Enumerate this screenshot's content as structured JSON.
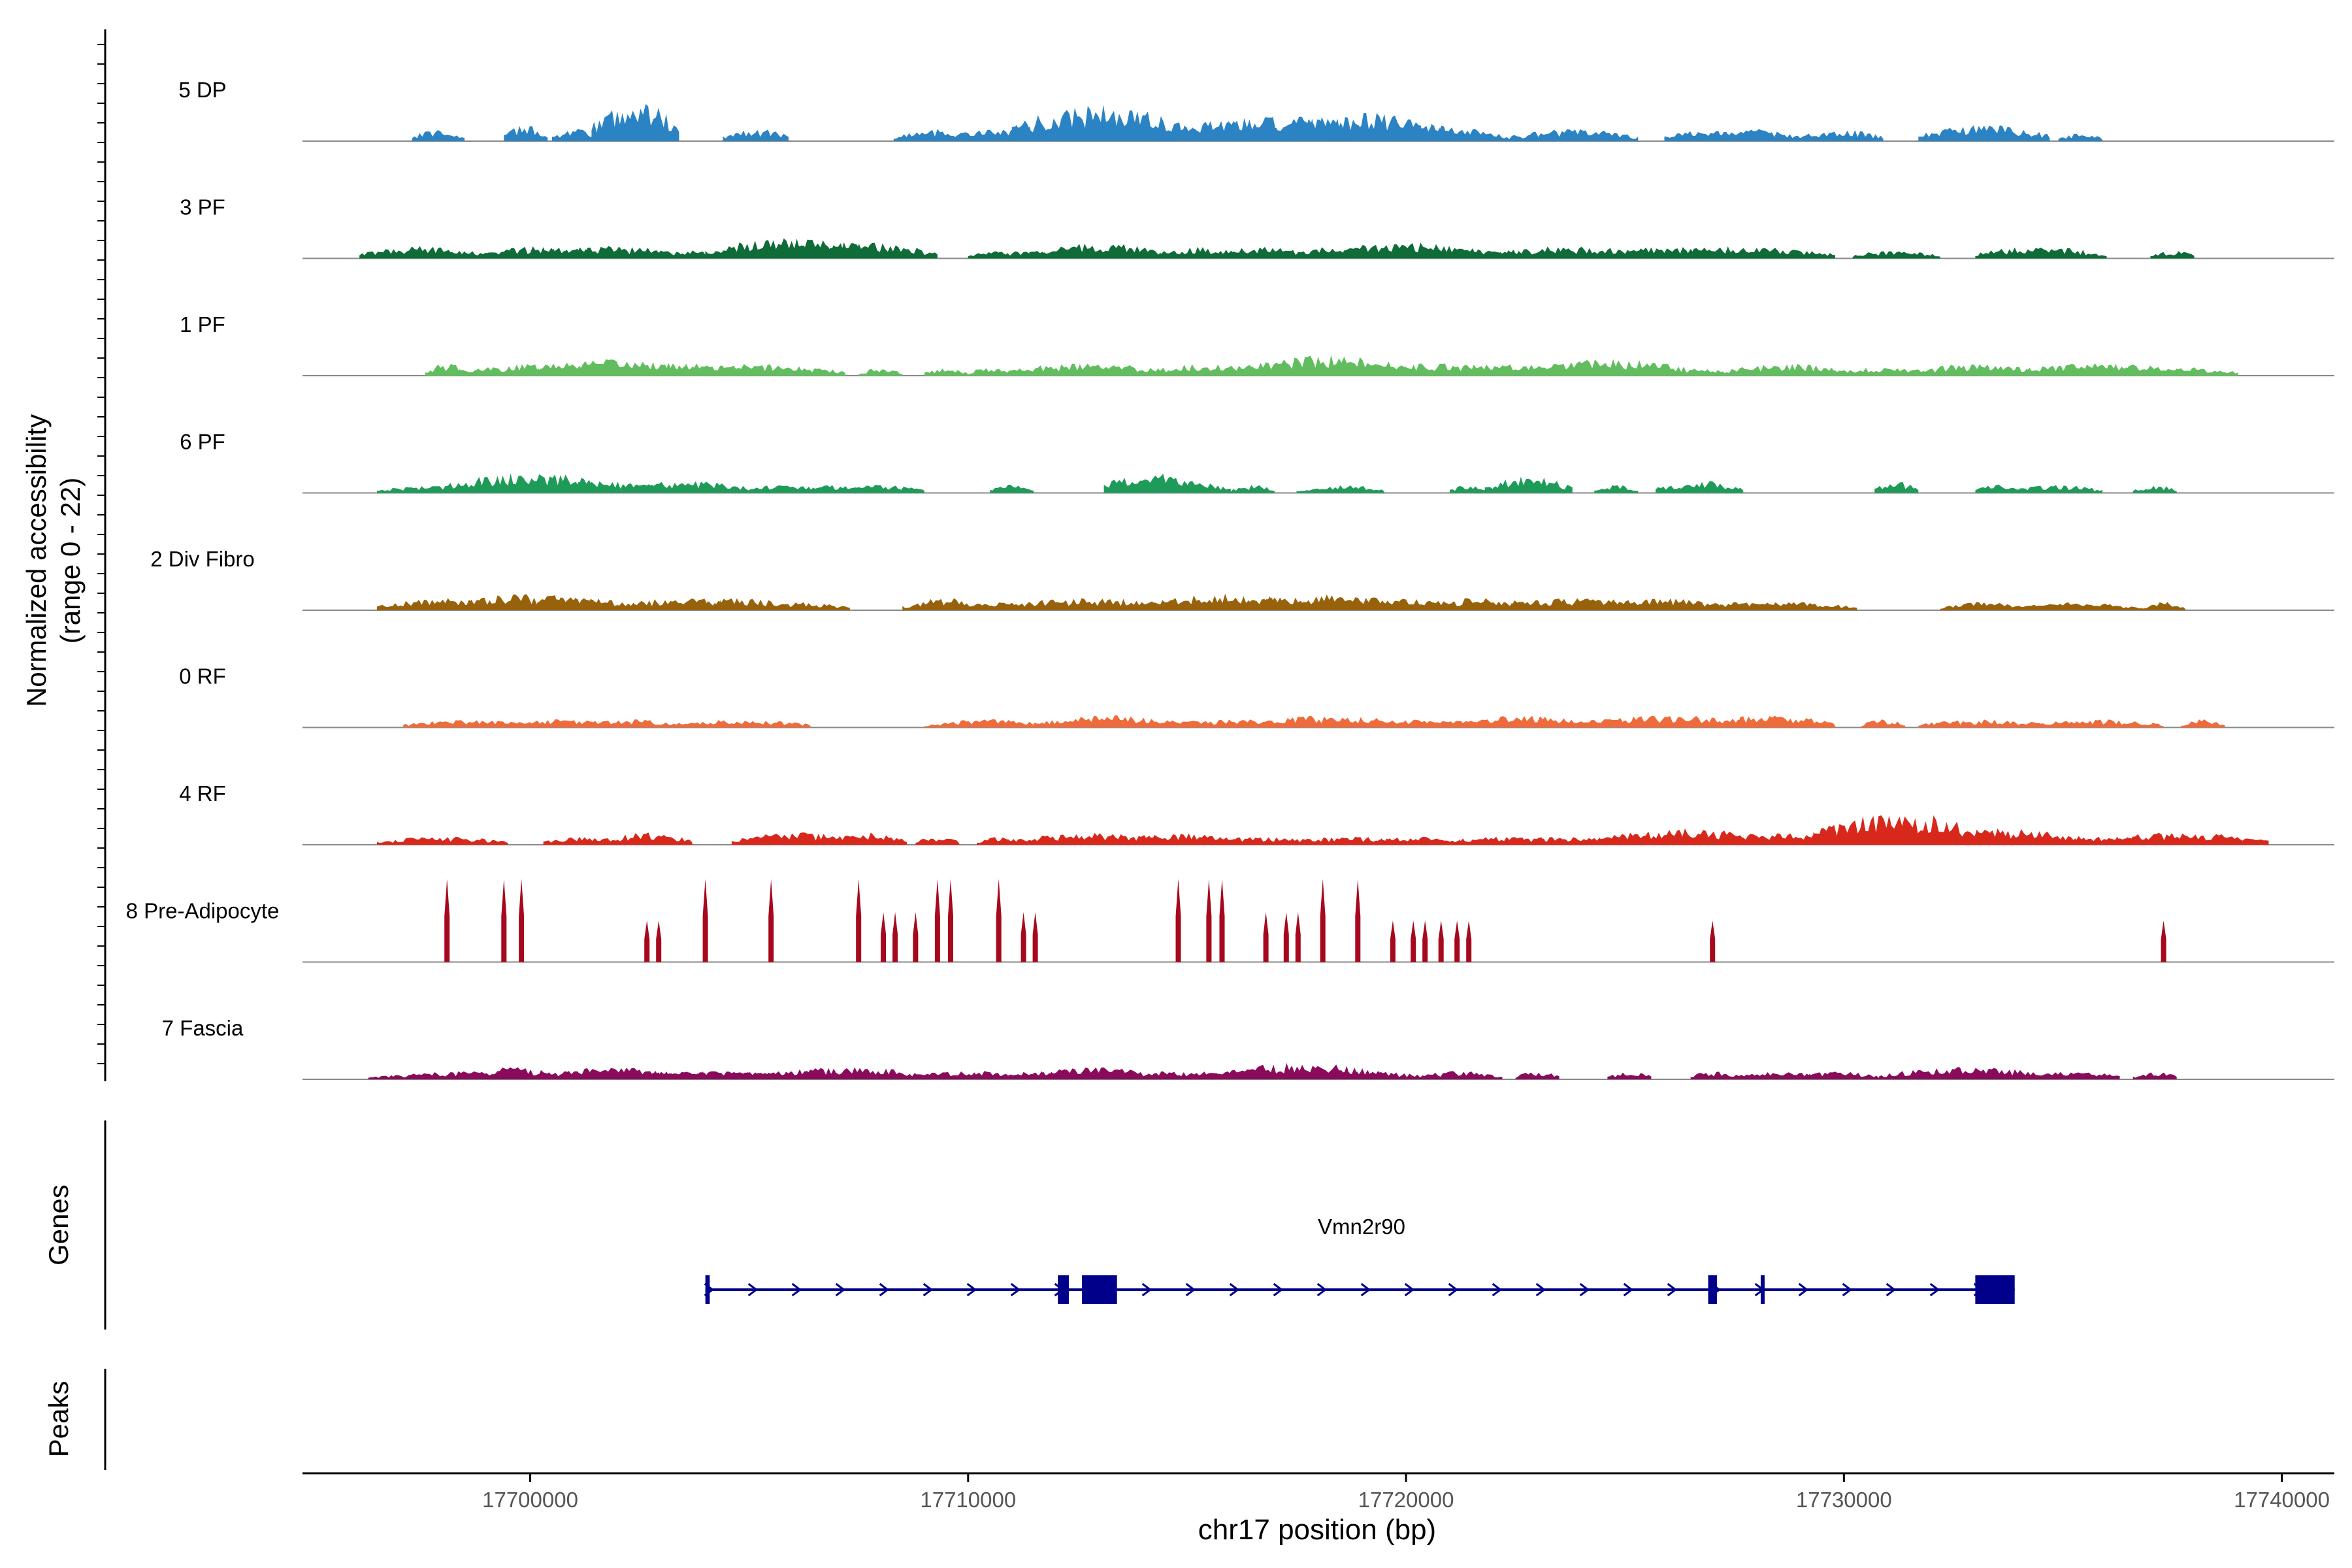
{
  "chart_data": {
    "type": "coverage-track",
    "y_axis_label_line1": "Normalized accessibility",
    "y_axis_label_line2": "(range 0 - 22)",
    "y_range": [
      0,
      22
    ],
    "x_axis_label": "chr17 position (bp)",
    "x_range": [
      17694800,
      17741200
    ],
    "x_ticks": [
      17700000,
      17710000,
      17720000,
      17730000,
      17740000
    ],
    "x_tick_labels": [
      "17700000",
      "17710000",
      "17720000",
      "17730000",
      "17740000"
    ],
    "tracks": [
      {
        "name": "5 DP",
        "color": "#2b83c4",
        "peaks": [
          [
            17697800,
            3,
            1
          ],
          [
            17698000,
            2,
            1
          ],
          [
            17699900,
            4,
            1
          ],
          [
            17701000,
            3,
            1
          ],
          [
            17702400,
            10,
            2
          ],
          [
            17704900,
            3,
            1
          ],
          [
            17705400,
            3,
            1
          ],
          [
            17709300,
            3,
            2
          ],
          [
            17711400,
            4,
            3
          ],
          [
            17713000,
            9,
            4
          ],
          [
            17715900,
            5,
            3
          ],
          [
            17717200,
            6,
            5
          ],
          [
            17719000,
            7,
            4
          ],
          [
            17720300,
            4,
            4
          ],
          [
            17723800,
            3,
            3
          ],
          [
            17726900,
            3,
            2
          ],
          [
            17728000,
            3,
            2
          ],
          [
            17729900,
            3,
            2
          ],
          [
            17733200,
            4,
            3
          ],
          [
            17735400,
            2,
            1
          ]
        ]
      },
      {
        "name": "3 PF",
        "color": "#0f6b37",
        "peaks": [
          [
            17697600,
            3,
            3
          ],
          [
            17698300,
            2,
            1
          ],
          [
            17700300,
            3,
            3
          ],
          [
            17701700,
            3,
            4
          ],
          [
            17702800,
            2,
            1
          ],
          [
            17703800,
            2,
            1
          ],
          [
            17704800,
            2,
            1
          ],
          [
            17706000,
            5,
            4
          ],
          [
            17707300,
            4,
            4
          ],
          [
            17710500,
            2,
            1
          ],
          [
            17711500,
            2,
            3
          ],
          [
            17712900,
            4,
            3
          ],
          [
            17715300,
            3,
            2
          ],
          [
            17716600,
            3,
            2
          ],
          [
            17718500,
            3,
            3
          ],
          [
            17720000,
            4,
            4
          ],
          [
            17721600,
            2,
            3
          ],
          [
            17723800,
            3,
            4
          ],
          [
            17725900,
            3,
            3
          ],
          [
            17727500,
            3,
            4
          ],
          [
            17729300,
            2,
            1
          ],
          [
            17731200,
            2,
            2
          ],
          [
            17734500,
            3,
            3
          ],
          [
            17737500,
            2,
            1
          ]
        ]
      },
      {
        "name": "1 PF",
        "color": "#62bd5f",
        "peaks": [
          [
            17698100,
            3,
            1
          ],
          [
            17698600,
            2,
            1
          ],
          [
            17700500,
            3,
            4
          ],
          [
            17702000,
            4,
            4
          ],
          [
            17703500,
            3,
            3
          ],
          [
            17705300,
            3,
            3
          ],
          [
            17706700,
            2,
            1
          ],
          [
            17708000,
            2,
            1
          ],
          [
            17709500,
            2,
            1
          ],
          [
            17710500,
            2,
            1
          ],
          [
            17712700,
            3,
            4
          ],
          [
            17715800,
            3,
            4
          ],
          [
            17718200,
            5,
            4
          ],
          [
            17720800,
            3,
            4
          ],
          [
            17722500,
            3,
            3
          ],
          [
            17724700,
            4,
            4
          ],
          [
            17726800,
            2,
            1
          ],
          [
            17728700,
            3,
            3
          ],
          [
            17730800,
            2,
            3
          ],
          [
            17733100,
            3,
            3
          ],
          [
            17735700,
            3,
            4
          ],
          [
            17736400,
            3,
            3
          ],
          [
            17738000,
            2,
            2
          ]
        ]
      },
      {
        "name": "6 PF",
        "color": "#1f9b59",
        "peaks": [
          [
            17698000,
            2,
            3
          ],
          [
            17700000,
            5,
            4
          ],
          [
            17701700,
            3,
            3
          ],
          [
            17703600,
            3,
            3
          ],
          [
            17705700,
            2,
            2
          ],
          [
            17707200,
            2,
            3
          ],
          [
            17708000,
            2,
            2
          ],
          [
            17711000,
            2,
            1
          ],
          [
            17714100,
            5,
            2
          ],
          [
            17715000,
            3,
            2
          ],
          [
            17716500,
            2,
            1
          ],
          [
            17718500,
            2,
            2
          ],
          [
            17721500,
            2,
            1
          ],
          [
            17722800,
            4,
            2
          ],
          [
            17724800,
            2,
            1
          ],
          [
            17726700,
            3,
            2
          ],
          [
            17731200,
            3,
            1
          ],
          [
            17733500,
            2,
            1
          ],
          [
            17734900,
            2,
            2
          ],
          [
            17737100,
            2,
            1
          ]
        ]
      },
      {
        "name": "2 Div Fibro",
        "color": "#98620c",
        "peaks": [
          [
            17698000,
            3,
            3
          ],
          [
            17700000,
            4,
            4
          ],
          [
            17701200,
            3,
            3
          ],
          [
            17703500,
            3,
            3
          ],
          [
            17704600,
            3,
            3
          ],
          [
            17706300,
            2,
            2
          ],
          [
            17709500,
            3,
            2
          ],
          [
            17711000,
            2,
            2
          ],
          [
            17712800,
            3,
            4
          ],
          [
            17715900,
            4,
            4
          ],
          [
            17718100,
            4,
            4
          ],
          [
            17719700,
            3,
            3
          ],
          [
            17721700,
            3,
            3
          ],
          [
            17724000,
            3,
            4
          ],
          [
            17725800,
            3,
            3
          ],
          [
            17727300,
            2,
            3
          ],
          [
            17728800,
            2,
            3
          ],
          [
            17733200,
            2,
            2
          ],
          [
            17735300,
            2,
            3
          ],
          [
            17737300,
            2,
            1
          ]
        ]
      },
      {
        "name": "0 RF",
        "color": "#ee6b3b",
        "peaks": [
          [
            17698600,
            2,
            3
          ],
          [
            17700700,
            2,
            3
          ],
          [
            17702200,
            2,
            3
          ],
          [
            17704900,
            2,
            3
          ],
          [
            17710500,
            2,
            3
          ],
          [
            17713500,
            3,
            4
          ],
          [
            17716200,
            2,
            3
          ],
          [
            17718400,
            3,
            4
          ],
          [
            17720600,
            2,
            3
          ],
          [
            17722700,
            3,
            3
          ],
          [
            17724300,
            2,
            3
          ],
          [
            17726000,
            3,
            4
          ],
          [
            17728300,
            3,
            3
          ],
          [
            17730900,
            2,
            1
          ],
          [
            17733200,
            2,
            3
          ],
          [
            17735800,
            2,
            3
          ],
          [
            17738200,
            2,
            1
          ]
        ]
      },
      {
        "name": "4 RF",
        "color": "#d8281c",
        "peaks": [
          [
            17698000,
            2,
            3
          ],
          [
            17701300,
            2,
            2
          ],
          [
            17702700,
            3,
            2
          ],
          [
            17706100,
            3,
            3
          ],
          [
            17707600,
            3,
            2
          ],
          [
            17709300,
            2,
            1
          ],
          [
            17710700,
            2,
            1
          ],
          [
            17712800,
            3,
            4
          ],
          [
            17714800,
            3,
            3
          ],
          [
            17716500,
            2,
            3
          ],
          [
            17718600,
            2,
            3
          ],
          [
            17720400,
            2,
            3
          ],
          [
            17722300,
            2,
            3
          ],
          [
            17723700,
            2,
            3
          ],
          [
            17726400,
            4,
            4
          ],
          [
            17728900,
            3,
            3
          ],
          [
            17731300,
            8,
            4
          ],
          [
            17733600,
            4,
            4
          ],
          [
            17736000,
            2,
            3
          ],
          [
            17737700,
            3,
            4
          ]
        ]
      },
      {
        "name": "8 Pre-Adipocyte",
        "color": "#a6081d",
        "peaks": [
          [
            17698100,
            20,
            1
          ],
          [
            17699400,
            20,
            1
          ],
          [
            17699800,
            20,
            1
          ],
          [
            17702800,
            10,
            2
          ],
          [
            17704000,
            20,
            1
          ],
          [
            17705500,
            20,
            1
          ],
          [
            17707500,
            20,
            1
          ],
          [
            17708200,
            12,
            2
          ],
          [
            17708800,
            12,
            1
          ],
          [
            17709300,
            20,
            1
          ],
          [
            17709600,
            20,
            1
          ],
          [
            17710700,
            20,
            1
          ],
          [
            17711400,
            12,
            2
          ],
          [
            17714800,
            20,
            1
          ],
          [
            17715500,
            20,
            1
          ],
          [
            17715800,
            20,
            1
          ],
          [
            17716800,
            12,
            1
          ],
          [
            17717400,
            12,
            2
          ],
          [
            17718100,
            20,
            1
          ],
          [
            17718900,
            20,
            1
          ],
          [
            17719700,
            10,
            1
          ],
          [
            17720300,
            10,
            2
          ],
          [
            17720800,
            10,
            1
          ],
          [
            17721300,
            10,
            2
          ],
          [
            17727000,
            10,
            1
          ],
          [
            17737300,
            10,
            1
          ]
        ]
      },
      {
        "name": "7 Fascia",
        "color": "#8a0b5b",
        "peaks": [
          [
            17696800,
            1,
            1
          ],
          [
            17698300,
            2,
            3
          ],
          [
            17699600,
            3,
            2
          ],
          [
            17700900,
            2,
            2
          ],
          [
            17701900,
            3,
            3
          ],
          [
            17702900,
            2,
            1
          ],
          [
            17703400,
            2,
            2
          ],
          [
            17704300,
            2,
            3
          ],
          [
            17705200,
            2,
            2
          ],
          [
            17706200,
            2,
            3
          ],
          [
            17707200,
            3,
            4
          ],
          [
            17709900,
            2,
            3
          ],
          [
            17710400,
            2,
            1
          ],
          [
            17711500,
            2,
            2
          ],
          [
            17712800,
            3,
            3
          ],
          [
            17714500,
            2,
            1
          ],
          [
            17715100,
            2,
            2
          ],
          [
            17716100,
            2,
            2
          ],
          [
            17717600,
            4,
            4
          ],
          [
            17719000,
            2,
            3
          ],
          [
            17721200,
            2,
            2
          ],
          [
            17723000,
            2,
            1
          ],
          [
            17725100,
            2,
            1
          ],
          [
            17727000,
            2,
            1
          ],
          [
            17728200,
            2,
            3
          ],
          [
            17729800,
            2,
            2
          ],
          [
            17732800,
            3,
            4
          ],
          [
            17735300,
            2,
            2
          ],
          [
            17737100,
            2,
            1
          ]
        ]
      }
    ],
    "genes_track_label": "Genes",
    "peaks_track_label": "Peaks",
    "gene": {
      "name": "Vmn2r90",
      "start": 17704000,
      "end": 17733900,
      "strand": "+",
      "color": "#00008b",
      "exons": [
        [
          17704000,
          17704100
        ],
        [
          17712050,
          17712300
        ],
        [
          17712600,
          17713400
        ],
        [
          17726900,
          17727100
        ],
        [
          17728100,
          17728150
        ],
        [
          17733000,
          17733900
        ]
      ]
    }
  }
}
